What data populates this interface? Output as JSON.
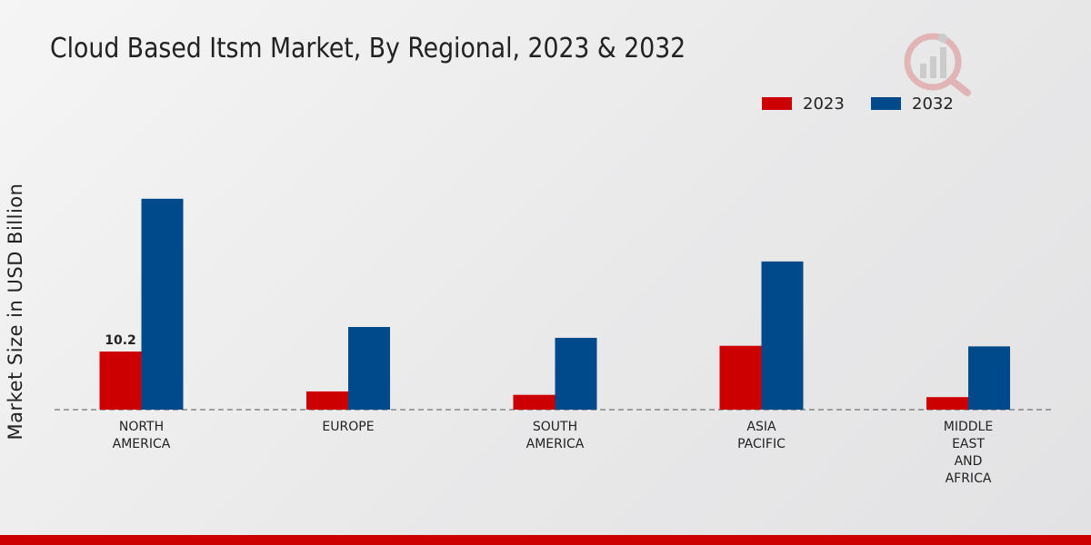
{
  "chart_data": {
    "type": "bar",
    "title": "Cloud Based Itsm Market, By Regional, 2023 & 2032",
    "xlabel": "",
    "ylabel": "Market Size in USD Billion",
    "categories": [
      [
        "NORTH",
        "AMERICA"
      ],
      [
        "EUROPE"
      ],
      [
        "SOUTH",
        "AMERICA"
      ],
      [
        "ASIA",
        "PACIFIC"
      ],
      [
        "MIDDLE",
        "EAST",
        "AND",
        "AFRICA"
      ]
    ],
    "series": [
      {
        "name": "2023",
        "color": "#cc0000",
        "values": [
          10.2,
          3.2,
          2.6,
          11.2,
          2.2
        ]
      },
      {
        "name": "2032",
        "color": "#004a8c",
        "values": [
          37.0,
          14.5,
          12.6,
          26.0,
          11.1
        ]
      }
    ],
    "data_labels": [
      {
        "series": 0,
        "index": 0,
        "text": "10.2"
      }
    ],
    "ylim": [
      0,
      40
    ],
    "grid": false,
    "legend_position": "top-right"
  }
}
